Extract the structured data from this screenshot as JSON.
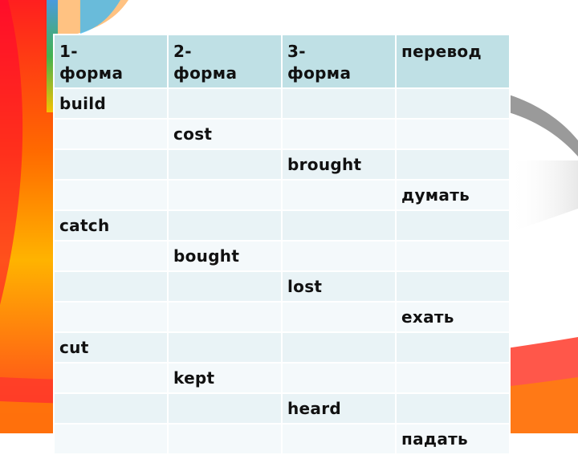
{
  "table": {
    "headers": [
      "1-\nформа",
      "2-\nформа",
      "3-\nформа",
      "перевод"
    ],
    "rows": [
      [
        "build",
        "",
        "",
        ""
      ],
      [
        "",
        "cost",
        "",
        ""
      ],
      [
        "",
        "",
        "brought",
        ""
      ],
      [
        "",
        "",
        "",
        "думать"
      ],
      [
        "catch",
        "",
        "",
        ""
      ],
      [
        "",
        "bought",
        "",
        ""
      ],
      [
        "",
        "",
        "lost",
        ""
      ],
      [
        "",
        "",
        "",
        "ехать"
      ],
      [
        "cut",
        "",
        "",
        ""
      ],
      [
        "",
        "kept",
        "",
        ""
      ],
      [
        "",
        "",
        "heard",
        ""
      ],
      [
        "",
        "",
        "",
        "падать"
      ]
    ]
  },
  "colors": {
    "header_bg": "#bfe0e5",
    "row_odd_bg": "#e9f3f6",
    "row_even_bg": "#f4f9fb"
  }
}
